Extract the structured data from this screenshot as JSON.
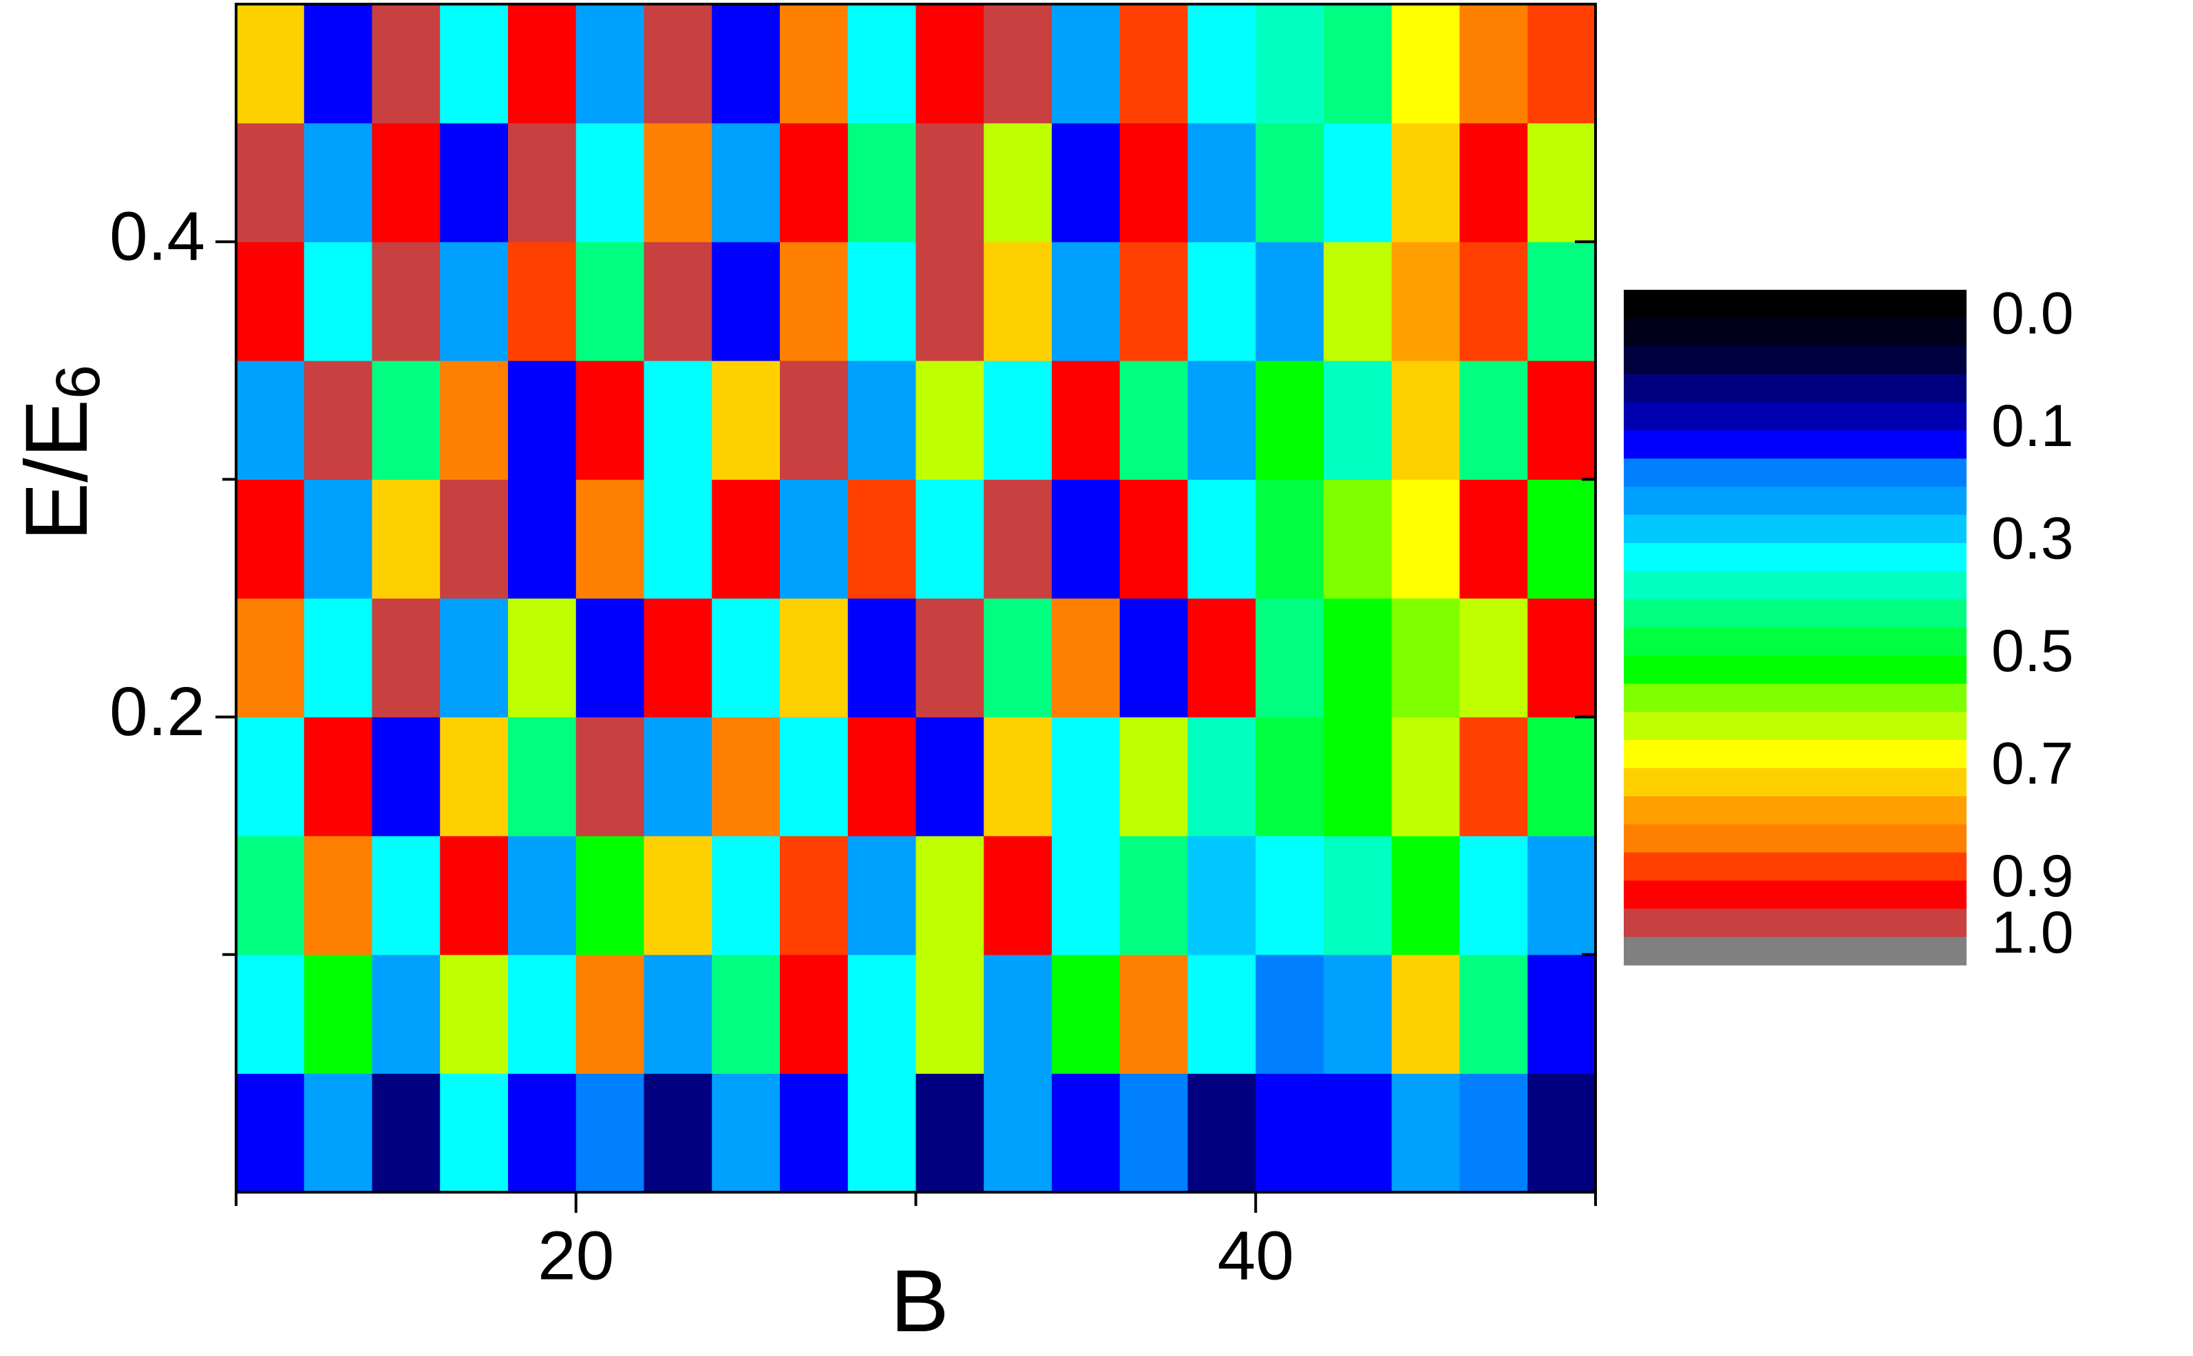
{
  "chart_data": {
    "type": "contour",
    "xlabel": "B",
    "ylabel": {
      "text": "E/E",
      "sub": "6"
    },
    "xlim": [
      10,
      50
    ],
    "xticks": [
      20,
      40
    ],
    "xticks_minor": [
      10,
      30,
      50
    ],
    "ylim": [
      0,
      0.5
    ],
    "yticks": [
      0.2,
      0.4
    ],
    "yticks_minor": [
      0.1,
      0.3
    ],
    "levels": [
      0,
      0.025,
      0.05,
      0.075,
      0.1,
      0.15,
      0.2,
      0.25,
      0.3,
      0.35,
      0.4,
      0.45,
      0.5,
      0.55,
      0.6,
      0.65,
      0.7,
      0.75,
      0.8,
      0.85,
      0.9,
      0.95,
      1.0
    ],
    "level_colors": [
      "#000000",
      "#00001a",
      "#000040",
      "#000080",
      "#0000b0",
      "#0000ff",
      "#0080ff",
      "#00a0ff",
      "#00c8ff",
      "#00ffff",
      "#00ffc0",
      "#00ff80",
      "#00ff40",
      "#00ff00",
      "#80ff00",
      "#c0ff00",
      "#ffff00",
      "#ffd000",
      "#ffa000",
      "#ff8000",
      "#ff4000",
      "#ff0000",
      "#c84040",
      "#808080"
    ],
    "colorbar_ticks": [
      {
        "value": 0,
        "label": "0.0"
      },
      0.1,
      0.3,
      0.5,
      0.7,
      0.9,
      {
        "value": 1,
        "label": "1.0"
      }
    ],
    "z": [
      [
        0.1,
        0.2,
        0.05,
        0.3,
        0.1,
        0.15,
        0.05,
        0.2,
        0.1,
        0.3,
        0.05,
        0.2,
        0.1,
        0.15,
        0.05,
        0.1,
        0.12,
        0.2,
        0.15,
        0.05
      ],
      [
        0.3,
        0.5,
        0.2,
        0.6,
        0.3,
        0.8,
        0.2,
        0.4,
        0.9,
        0.3,
        0.6,
        0.2,
        0.5,
        0.8,
        0.3,
        0.15,
        0.2,
        0.7,
        0.4,
        0.1
      ],
      [
        0.4,
        0.8,
        0.3,
        0.9,
        0.2,
        0.5,
        0.7,
        0.3,
        0.85,
        0.2,
        0.6,
        0.9,
        0.3,
        0.4,
        0.25,
        0.3,
        0.35,
        0.5,
        0.3,
        0.2
      ],
      [
        0.3,
        0.9,
        0.1,
        0.7,
        0.4,
        0.95,
        0.2,
        0.8,
        0.3,
        0.9,
        0.1,
        0.7,
        0.3,
        0.6,
        0.35,
        0.45,
        0.5,
        0.6,
        0.85,
        0.45
      ],
      [
        0.8,
        0.3,
        0.95,
        0.2,
        0.6,
        0.1,
        0.9,
        0.3,
        0.7,
        0.1,
        0.95,
        0.4,
        0.8,
        0.1,
        0.9,
        0.4,
        0.5,
        0.55,
        0.6,
        0.9
      ],
      [
        0.9,
        0.2,
        0.7,
        0.95,
        0.1,
        0.8,
        0.3,
        0.9,
        0.2,
        0.85,
        0.3,
        0.95,
        0.1,
        0.9,
        0.3,
        0.45,
        0.55,
        0.65,
        0.9,
        0.5
      ],
      [
        0.2,
        0.95,
        0.4,
        0.8,
        0.1,
        0.9,
        0.3,
        0.7,
        0.95,
        0.2,
        0.6,
        0.3,
        0.9,
        0.4,
        0.2,
        0.5,
        0.35,
        0.7,
        0.4,
        0.9
      ],
      [
        0.9,
        0.3,
        0.95,
        0.2,
        0.85,
        0.4,
        0.95,
        0.1,
        0.8,
        0.3,
        0.95,
        0.7,
        0.2,
        0.85,
        0.3,
        0.2,
        0.6,
        0.75,
        0.85,
        0.4
      ],
      [
        0.95,
        0.2,
        0.9,
        0.1,
        0.95,
        0.3,
        0.8,
        0.2,
        0.9,
        0.4,
        0.95,
        0.6,
        0.1,
        0.9,
        0.2,
        0.4,
        0.3,
        0.7,
        0.9,
        0.6
      ],
      [
        0.7,
        0.1,
        0.95,
        0.3,
        0.9,
        0.2,
        0.95,
        0.1,
        0.8,
        0.3,
        0.9,
        0.95,
        0.2,
        0.85,
        0.3,
        0.35,
        0.4,
        0.65,
        0.8,
        0.85
      ]
    ]
  }
}
